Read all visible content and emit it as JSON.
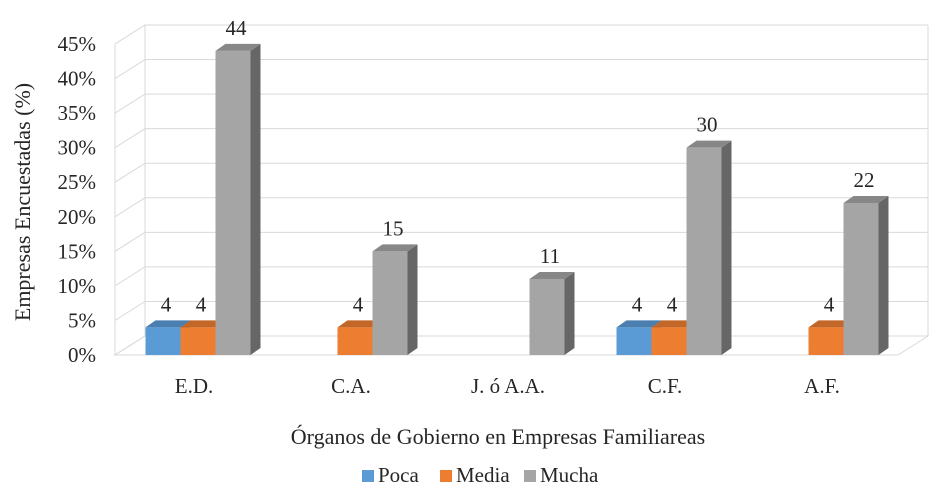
{
  "chart_data": {
    "type": "bar",
    "title": "",
    "xlabel": "Órganos de Gobierno en Empresas Familiareas",
    "ylabel": "Empresas Encuestadas (%)",
    "ylim": [
      0,
      45
    ],
    "yticks": [
      "0%",
      "5%",
      "10%",
      "15%",
      "20%",
      "25%",
      "30%",
      "35%",
      "40%",
      "45%"
    ],
    "categories": [
      "E.D.",
      "C.A.",
      "J. ó A.A.",
      "C.F.",
      "A.F."
    ],
    "series": [
      {
        "name": "Poca",
        "color": "#5b9bd5",
        "values": [
          4,
          null,
          null,
          4,
          null
        ]
      },
      {
        "name": "Media",
        "color": "#ed7d31",
        "values": [
          4,
          4,
          null,
          4,
          4
        ]
      },
      {
        "name": "Mucha",
        "color": "#a5a5a5",
        "values": [
          44,
          15,
          11,
          30,
          22
        ]
      }
    ],
    "grid": true,
    "legend": "bottom"
  }
}
